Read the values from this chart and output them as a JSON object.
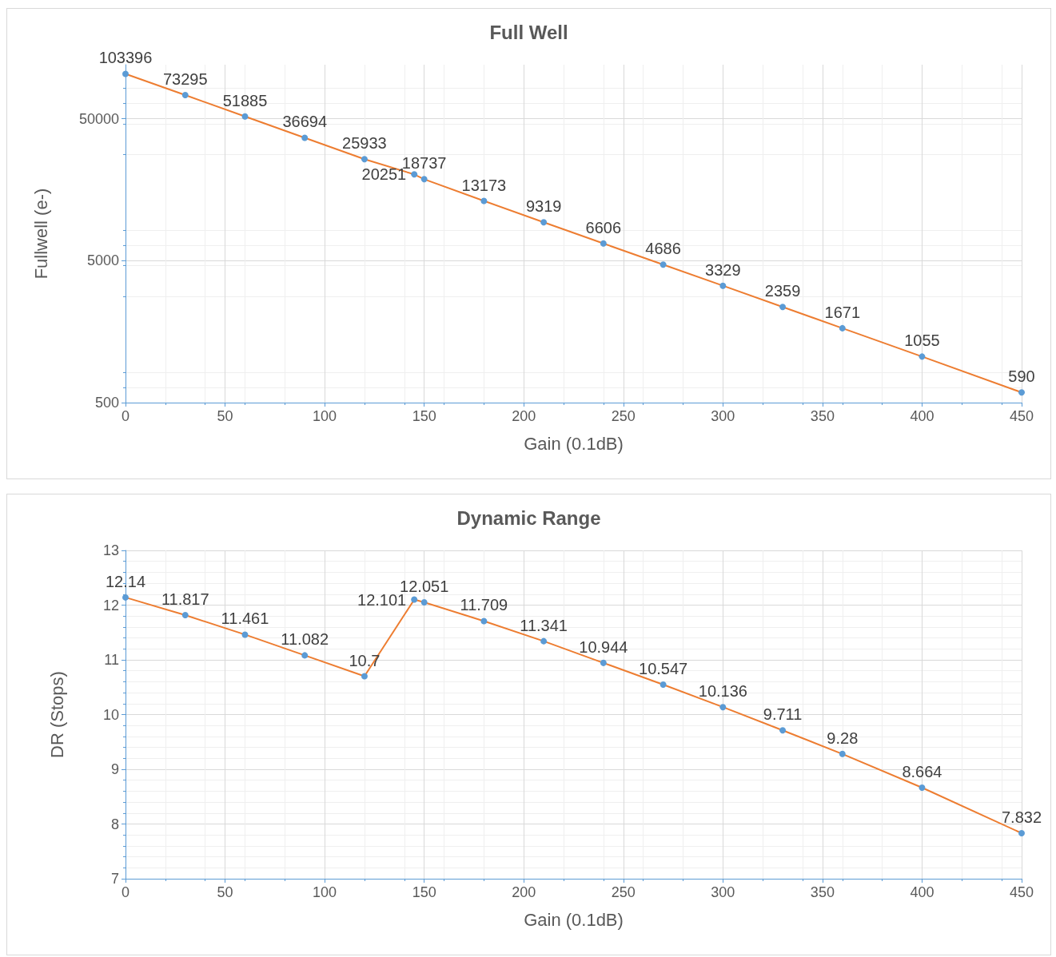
{
  "chart_data": [
    {
      "type": "line",
      "title": "Full Well",
      "xlabel": "Gain (0.1dB)",
      "ylabel": "Fullwell (e-)",
      "x": [
        0,
        30,
        60,
        90,
        120,
        145,
        150,
        180,
        210,
        240,
        270,
        300,
        330,
        360,
        400,
        450
      ],
      "series": [
        {
          "color": "#ed7d31",
          "colors": [
            "#5b9bd5",
            "#5b9bd5",
            "#5b9bd5",
            "#5b9bd5",
            "#5b9bd5",
            "#5b9bd5",
            "#5b9bd5",
            "#5b9bd5",
            "#5b9bd5",
            "#5b9bd5",
            "#5b9bd5",
            "#5b9bd5",
            "#5b9bd5",
            "#5b9bd5",
            "#5b9bd5",
            "#5b9bd5"
          ],
          "values": [
            103396,
            73295,
            51885,
            36694,
            25933,
            20251,
            18737,
            13173,
            9319,
            6606,
            4686,
            3329,
            2359,
            1671,
            1055,
            590
          ]
        }
      ],
      "marker": "circle",
      "line_style": "solid",
      "data_labels": true,
      "log": "y",
      "grid": true,
      "xlim": [
        0,
        450
      ],
      "xticks": [
        0,
        50,
        100,
        150,
        200,
        250,
        300,
        350,
        400,
        450
      ],
      "ylim": [
        500,
        120000
      ],
      "yticks": [
        500,
        5000,
        50000
      ]
    },
    {
      "type": "line",
      "title": "Dynamic Range",
      "xlabel": "Gain (0.1dB)",
      "ylabel": "DR (Stops)",
      "x": [
        0,
        30,
        60,
        90,
        120,
        145,
        150,
        180,
        210,
        240,
        270,
        300,
        330,
        360,
        400,
        450
      ],
      "series": [
        {
          "color": "#ed7d31",
          "colors": [
            "#5b9bd5",
            "#5b9bd5",
            "#5b9bd5",
            "#5b9bd5",
            "#5b9bd5",
            "#5b9bd5",
            "#5b9bd5",
            "#5b9bd5",
            "#5b9bd5",
            "#5b9bd5",
            "#5b9bd5",
            "#5b9bd5",
            "#5b9bd5",
            "#5b9bd5",
            "#5b9bd5",
            "#5b9bd5"
          ],
          "values": [
            12.14,
            11.817,
            11.461,
            11.082,
            10.7,
            12.101,
            12.051,
            11.709,
            11.341,
            10.944,
            10.547,
            10.136,
            9.711,
            9.28,
            8.664,
            7.832
          ]
        }
      ],
      "marker": "circle",
      "line_style": "solid",
      "data_labels": true,
      "grid": true,
      "xlim": [
        0,
        450
      ],
      "xticks": [
        0,
        50,
        100,
        150,
        200,
        250,
        300,
        350,
        400,
        450
      ],
      "ylim": [
        7,
        13
      ],
      "yticks": [
        7,
        8,
        9,
        10,
        11,
        12,
        13
      ]
    }
  ]
}
